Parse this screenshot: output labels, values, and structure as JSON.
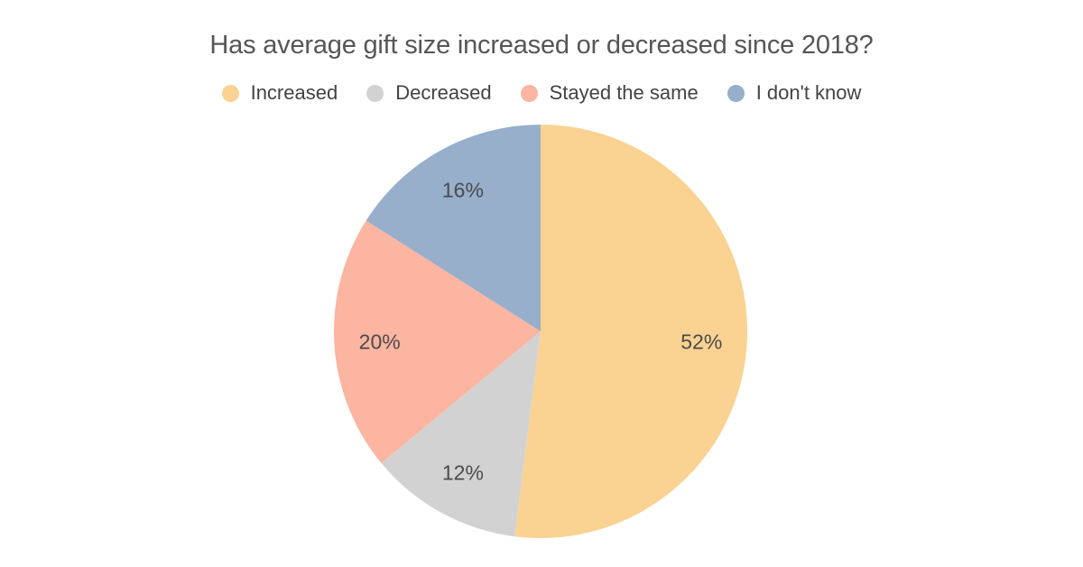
{
  "chart_data": {
    "type": "pie",
    "title": "Has average gift size increased or decreased since 2018?",
    "categories": [
      "Increased",
      "Decreased",
      "Stayed the same",
      "I don't know"
    ],
    "values": [
      52,
      12,
      20,
      16
    ],
    "slice_labels": [
      "52%",
      "12%",
      "20%",
      "16%"
    ],
    "colors": [
      "#FAD291",
      "#D2D2D2",
      "#FBB5A1",
      "#97AFCB"
    ],
    "start_angle_deg": 0,
    "direction": "clockwise",
    "legend_position": "top",
    "background_color": "#FFFFFF",
    "title_color": "#565656",
    "legend_text_color": "#434343",
    "slice_label_color": "#4B4B4B"
  }
}
